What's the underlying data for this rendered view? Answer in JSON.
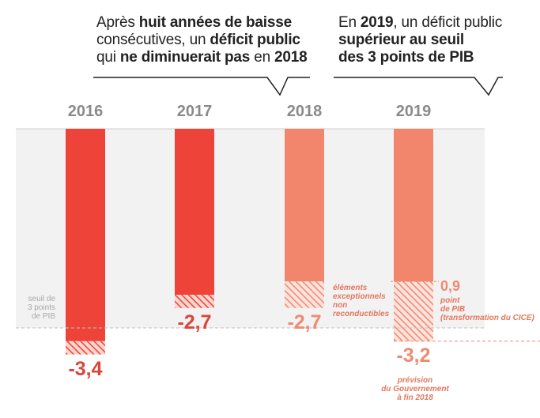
{
  "callouts": {
    "left": {
      "line1_pre": "Après ",
      "line1_bold": "huit années de baisse",
      "line2_pre": "consécutives, un ",
      "line2_bold": "déficit public",
      "line3_pre": "qui ",
      "line3_bold": "ne diminuerait pas",
      "line3_mid": " en ",
      "line3_bold2": "2018"
    },
    "right": {
      "line1_pre": "En ",
      "line1_bold": "2019",
      "line1_post": ", un déficit public",
      "line2_bold": "supérieur au seuil",
      "line3_bold": "des 3 points de PIB"
    }
  },
  "threshold": {
    "label_line1": "seuil de",
    "label_line2": "3 points",
    "label_line3": "de PIB"
  },
  "notes": {
    "exceptional_l1": "éléments",
    "exceptional_l2": "exceptionnels",
    "exceptional_l3": "non",
    "exceptional_l4": "reconductibles",
    "cice_value": "0,9",
    "cice_l1": "point",
    "cice_l2": "de PIB",
    "cice_l3": "(transformation du CICE)",
    "forecast_l1": "prévision",
    "forecast_l2": "du Gouvernement",
    "forecast_l3": "à fin 2018"
  },
  "colors": {
    "dark_bar": "#ee4339",
    "light_bar": "#f2866c",
    "panel": "#f2f2f2",
    "threshold_line": "#c0c0c0",
    "value_dark": "#d8463b",
    "value_light": "#ef8a72"
  },
  "chart_data": {
    "type": "bar",
    "title": "",
    "xlabel": "",
    "ylabel": "",
    "categories": [
      "2016",
      "2017",
      "2018",
      "2019"
    ],
    "value_labels": [
      "-3,4",
      "-2,7",
      "-2,7",
      "-3,2"
    ],
    "series": [
      {
        "values": [
          -3.4,
          -2.7,
          -2.7,
          -3.2
        ]
      }
    ],
    "hatched_portion": [
      0.2,
      0.2,
      0.4,
      0.9
    ],
    "threshold": -3.0,
    "ylim": [
      -3.6,
      0
    ]
  }
}
